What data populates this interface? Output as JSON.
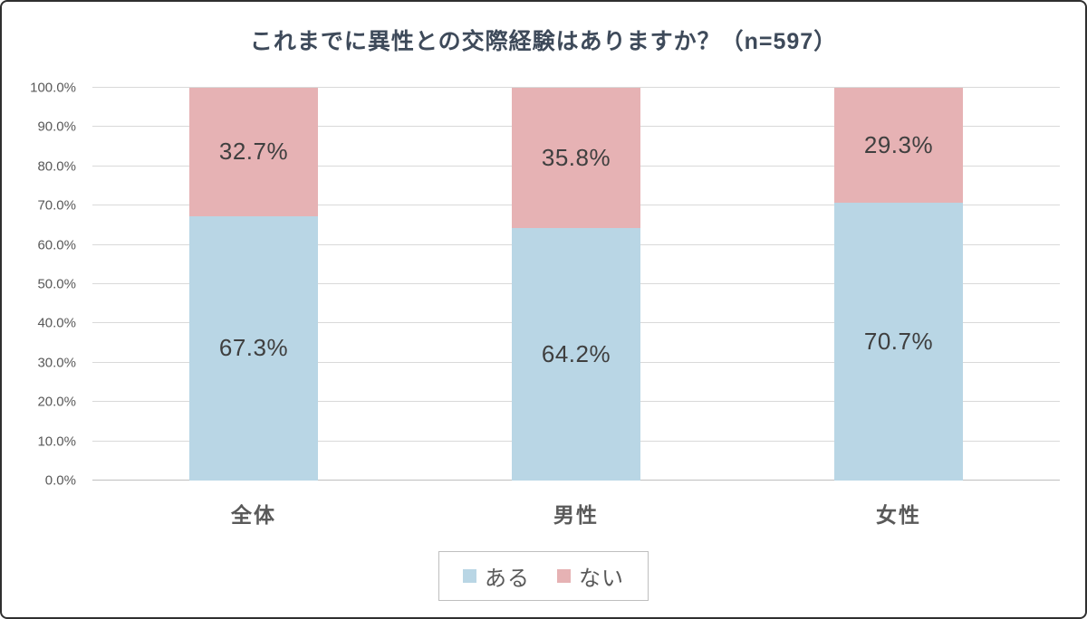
{
  "chart_data": {
    "type": "bar",
    "variant": "stacked-percentage-column",
    "title": "これまでに異性との交際経験はありますか？（n=597）",
    "categories": [
      "全体",
      "男性",
      "女性"
    ],
    "series": [
      {
        "name": "ある",
        "key": "aru",
        "color": "#b9d6e5",
        "values": [
          67.3,
          64.2,
          70.7
        ],
        "labels": [
          "67.3%",
          "64.2%",
          "70.7%"
        ]
      },
      {
        "name": "ない",
        "key": "nai",
        "color": "#e6b2b4",
        "values": [
          32.7,
          35.8,
          29.3
        ],
        "labels": [
          "32.7%",
          "35.8%",
          "29.3%"
        ]
      }
    ],
    "y_axis": {
      "min": 0,
      "max": 100,
      "step": 10,
      "ticks": [
        "0.0%",
        "10.0%",
        "20.0%",
        "30.0%",
        "40.0%",
        "50.0%",
        "60.0%",
        "70.0%",
        "80.0%",
        "90.0%",
        "100.0%"
      ]
    },
    "grid": true,
    "legend_position": "bottom"
  },
  "colors": {
    "series_aru": "#b9d6e5",
    "series_nai": "#e6b2b4",
    "gridline": "#d9d9d9",
    "baseline": "#bfbfbf",
    "tick_text": "#595959",
    "data_label_text": "#3f3f3f",
    "title_text": "#3e4a5a",
    "frame_border": "#2f2f2f"
  }
}
